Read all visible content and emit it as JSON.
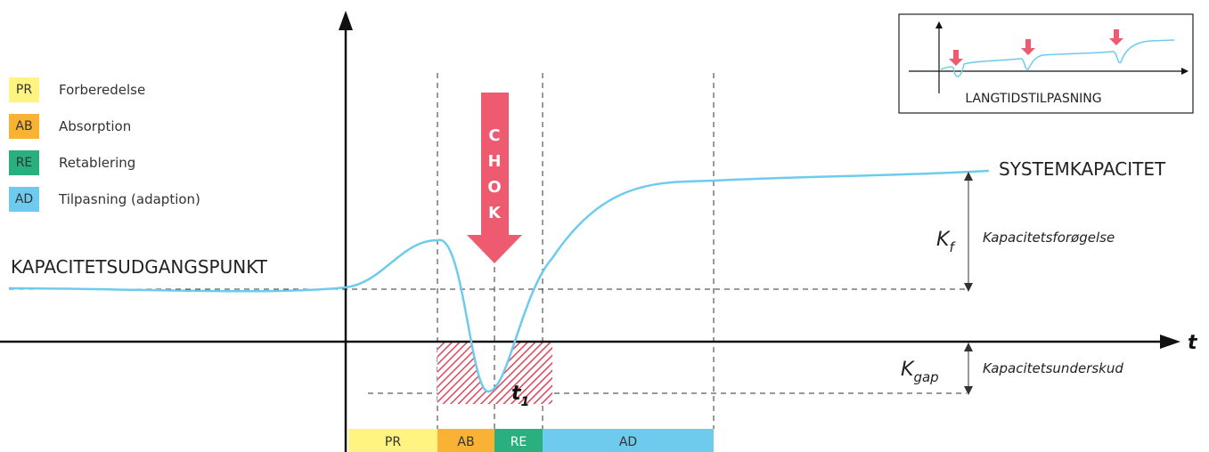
{
  "legend": [
    {
      "code": "PR",
      "label": "Forberedelse",
      "color": "#fff481"
    },
    {
      "code": "AB",
      "label": "Absorption",
      "color": "#f9b233"
    },
    {
      "code": "RE",
      "label": "Retablering",
      "color": "#2aaf7f"
    },
    {
      "code": "AD",
      "label": "Tilpasning (adaption)",
      "color": "#6ecbee"
    }
  ],
  "labels": {
    "start_capacity": "KAPACITETSUDGANGSPUNKT",
    "system_capacity": "SYSTEMKAPACITET",
    "time_axis": "t",
    "time_marker": "t",
    "time_marker_sub": "1",
    "k_f_main": "K",
    "k_f_sub": "f",
    "k_f_desc": "Kapacitetsforøgelse",
    "k_gap_main": "K",
    "k_gap_sub": "gap",
    "k_gap_desc": "Kapacitetsunderskud",
    "shock": [
      "C",
      "H",
      "O",
      "K"
    ]
  },
  "phase_bar": [
    {
      "code": "PR",
      "color": "#fff481"
    },
    {
      "code": "AB",
      "color": "#f9b233"
    },
    {
      "code": "RE",
      "color": "#2aaf7f"
    },
    {
      "code": "AD",
      "color": "#6ecbee"
    }
  ],
  "inset": {
    "label": "LANGTIDSTILPASNING"
  },
  "colors": {
    "curve": "#6ecbee",
    "shock": "#ee5a6f",
    "hatch": "#e0455c",
    "axis": "#111111"
  }
}
